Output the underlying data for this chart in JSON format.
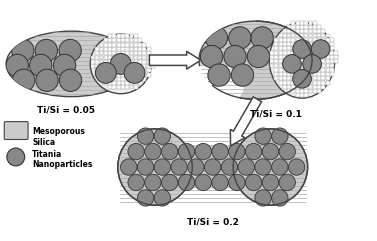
{
  "bg_color": "#ffffff",
  "silica_color": "#cccccc",
  "silica_edge": "#444444",
  "titania_color": "#888888",
  "titania_edge": "#333333",
  "label_ti05": "Ti/Si = 0.05",
  "label_ti01": "Ti/Si = 0.1",
  "label_ti02": "Ti/Si = 0.2",
  "legend_silica": "Mesoporous\nSilica",
  "legend_titania": "Titania\nNanoparticles",
  "figsize": [
    3.77,
    2.41
  ],
  "dpi": 100
}
